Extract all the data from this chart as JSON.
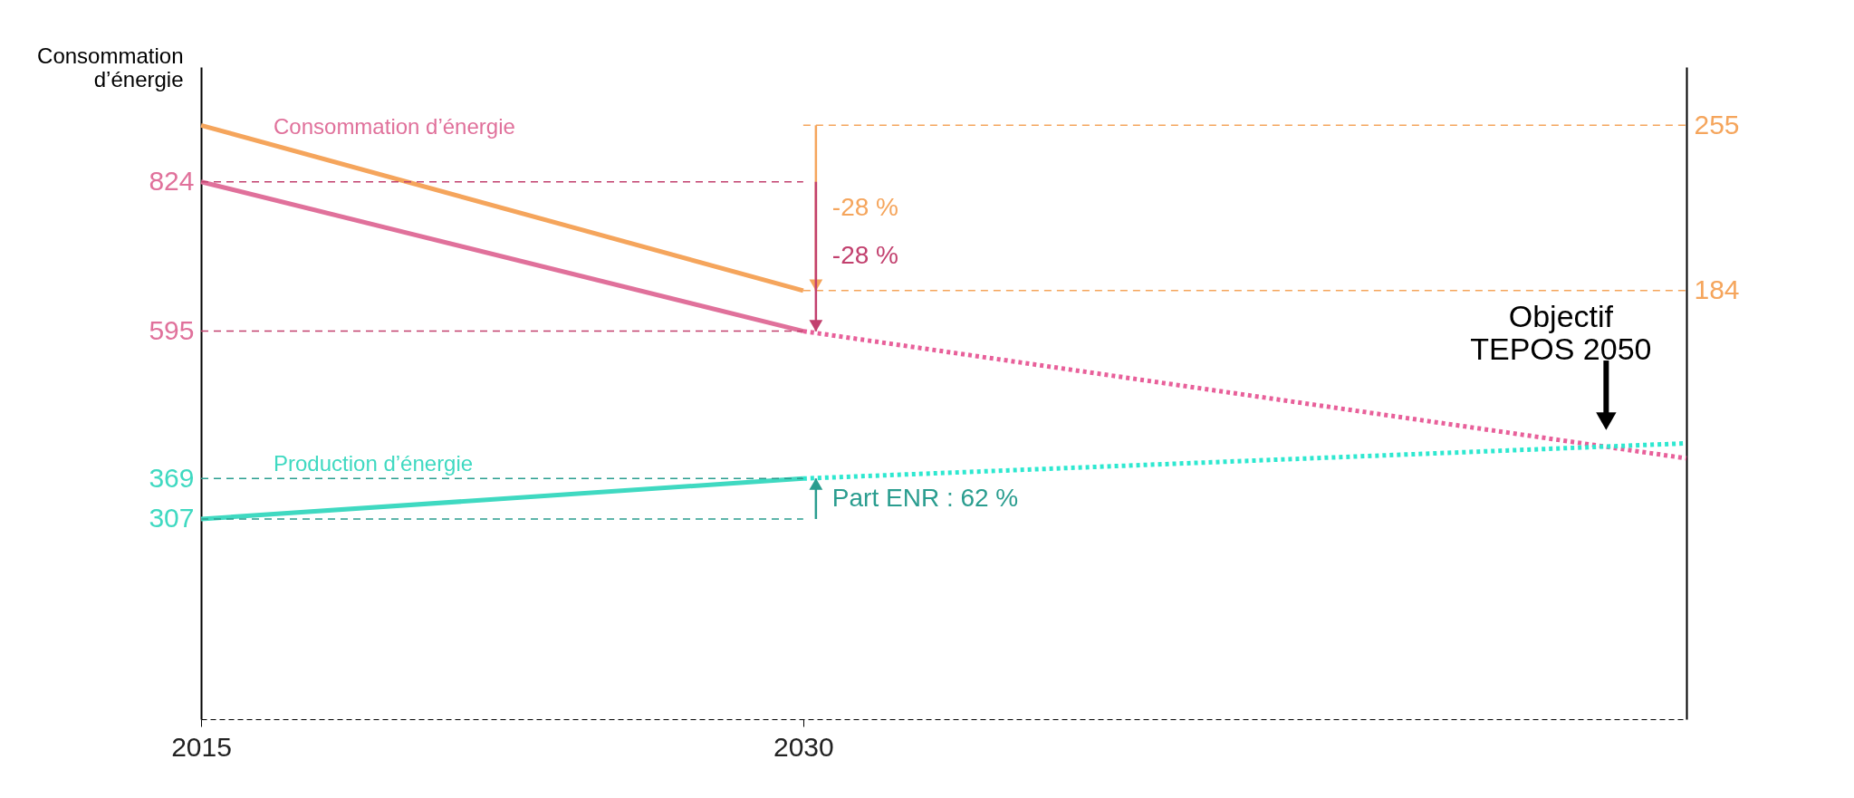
{
  "chart_data": {
    "type": "line",
    "ylabel": "Consommation d’énergie",
    "xlim": [
      2015,
      2052
    ],
    "xticks": [
      2015,
      2030
    ],
    "ylim": [
      0,
      1000
    ],
    "yticks": [
      307,
      369,
      595,
      824
    ],
    "y2lim": [
      0,
      280
    ],
    "y2ticks": [
      184,
      255
    ],
    "grid": false,
    "series": [
      {
        "name": "Consommation d’énergie",
        "color": "#e0719b",
        "x": [
          2015,
          2030
        ],
        "values": [
          824,
          595
        ]
      },
      {
        "color": "#e8609a",
        "x": [
          2030,
          2052
        ],
        "values": [
          595,
          400
        ],
        "line_style": "dotted"
      },
      {
        "name": "Production d’énergie",
        "color": "#3fd9c1",
        "x": [
          2015,
          2030
        ],
        "values": [
          307,
          369
        ]
      },
      {
        "color": "#2ee8d0",
        "x": [
          2030,
          2052
        ],
        "values": [
          369,
          423
        ],
        "line_style": "dotted"
      },
      {
        "color": "#f5a55c",
        "x": [
          2015,
          2030
        ],
        "values": [
          255,
          184
        ],
        "axis": "y2"
      }
    ],
    "ref_lines": [
      {
        "axis": "y2",
        "value": 255,
        "color": "#f5a55c",
        "line_style": "dashed"
      },
      {
        "axis": "y2",
        "value": 184,
        "color": "#f5a55c",
        "line_style": "dashed"
      },
      {
        "axis": "y",
        "value": 824,
        "color": "#c2406e",
        "line_style": "dashed"
      },
      {
        "axis": "y",
        "value": 595,
        "color": "#c2406e",
        "line_style": "dashed"
      },
      {
        "axis": "y",
        "value": 307,
        "color": "#2a9d8f",
        "line_style": "dashed"
      },
      {
        "axis": "y",
        "value": 369,
        "color": "#2a9d8f",
        "line_style": "dashed"
      }
    ],
    "annotations": [
      "-28 %",
      {
        "text": "-28 %",
        "x": 2030,
        "y": 595
      },
      "Part ENR : 62 %",
      {
        "text": "Objectif\nTEPOS 2050",
        "x": 2050,
        "y": 418
      }
    ]
  }
}
